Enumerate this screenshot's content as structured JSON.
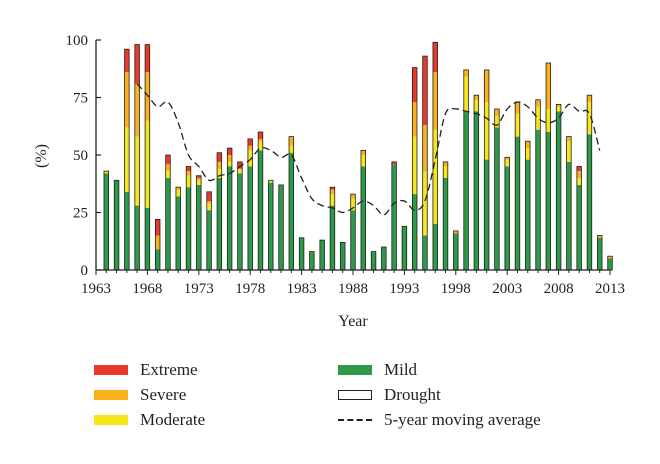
{
  "chart_data": {
    "type": "bar",
    "stacked": true,
    "xlabel": "Year",
    "ylabel": "(%)",
    "ylim": [
      0,
      100
    ],
    "xlim": [
      1963,
      2013
    ],
    "yticks": [
      "0",
      "25",
      "50",
      "75",
      "100"
    ],
    "xticks": [
      "1963",
      "1968",
      "1973",
      "1978",
      "1983",
      "1988",
      "1993",
      "1998",
      "2003",
      "2008",
      "2013"
    ],
    "colors": {
      "Mild": "#2d9a47",
      "Moderate": "#f6e71d",
      "Severe": "#f9b21b",
      "Extreme": "#e8392b",
      "Drought": "#231f20",
      "moving_average": "#231f20"
    },
    "x": [
      1964,
      1965,
      1966,
      1967,
      1968,
      1969,
      1970,
      1971,
      1972,
      1973,
      1974,
      1975,
      1976,
      1977,
      1978,
      1979,
      1980,
      1981,
      1982,
      1983,
      1984,
      1985,
      1986,
      1987,
      1988,
      1989,
      1990,
      1991,
      1992,
      1993,
      1994,
      1995,
      1996,
      1997,
      1998,
      1999,
      2000,
      2001,
      2002,
      2003,
      2004,
      2005,
      2006,
      2007,
      2008,
      2009,
      2010,
      2011,
      2012,
      2013
    ],
    "series": [
      {
        "name": "Mild",
        "values": [
          42,
          39,
          34,
          28,
          27,
          9,
          40,
          32,
          36,
          37,
          26,
          40,
          45,
          42,
          45,
          52,
          38,
          37,
          51,
          14,
          8,
          13,
          28,
          12,
          26,
          45,
          8,
          10,
          46,
          19,
          33,
          15,
          20,
          40,
          16,
          69,
          69,
          48,
          62,
          45,
          58,
          48,
          61,
          60,
          69,
          47,
          37,
          59,
          14,
          5
        ]
      },
      {
        "name": "Moderate",
        "values": [
          1,
          0,
          28,
          30,
          38,
          0,
          3,
          3,
          5,
          2,
          3,
          4,
          2,
          2,
          7,
          4,
          1,
          0,
          3,
          0,
          0,
          0,
          5,
          0,
          5,
          5,
          0,
          0,
          0,
          0,
          25,
          28,
          41,
          5,
          0,
          15,
          5,
          25,
          5,
          3,
          10,
          5,
          10,
          10,
          2,
          9,
          3,
          14,
          0,
          0
        ]
      },
      {
        "name": "Severe",
        "values": [
          0,
          0,
          24,
          23,
          21,
          6,
          3,
          1,
          2,
          1,
          1,
          3,
          3,
          0,
          2,
          1,
          0,
          0,
          4,
          0,
          0,
          0,
          2,
          0,
          2,
          2,
          0,
          0,
          0,
          0,
          15,
          20,
          25,
          2,
          1,
          3,
          2,
          14,
          3,
          1,
          5,
          3,
          3,
          20,
          1,
          2,
          3,
          3,
          1,
          1
        ]
      },
      {
        "name": "Extreme",
        "values": [
          0,
          0,
          10,
          17,
          12,
          7,
          4,
          0,
          2,
          1,
          4,
          4,
          3,
          3,
          3,
          3,
          0,
          0,
          0,
          0,
          0,
          0,
          1,
          0,
          0,
          0,
          0,
          0,
          1,
          0,
          15,
          30,
          13,
          0,
          0,
          0,
          0,
          0,
          0,
          0,
          0,
          0,
          0,
          0,
          0,
          0,
          2,
          0,
          0,
          0
        ]
      }
    ],
    "moving_average": {
      "name": "5-year moving average",
      "x": [
        1967,
        1968,
        1969,
        1970,
        1971,
        1972,
        1973,
        1974,
        1975,
        1976,
        1977,
        1978,
        1979,
        1980,
        1981,
        1982,
        1983,
        1984,
        1985,
        1986,
        1987,
        1988,
        1989,
        1990,
        1991,
        1992,
        1993,
        1994,
        1995,
        1996,
        1997,
        1998,
        1999,
        2000,
        2001,
        2002,
        2003,
        2004,
        2005,
        2006,
        2007,
        2008,
        2009,
        2010,
        2011,
        2012
      ],
      "values": [
        81,
        76,
        71,
        73,
        64,
        50,
        45,
        39,
        41,
        42,
        45,
        48,
        53,
        52,
        49,
        50,
        40,
        31,
        28,
        27,
        25,
        27,
        30,
        28,
        24,
        29,
        30,
        26,
        30,
        48,
        68,
        70,
        69,
        68,
        66,
        63,
        70,
        73,
        71,
        66,
        64,
        66,
        72,
        69,
        68,
        52
      ]
    }
  },
  "legend": {
    "extreme": "Extreme",
    "severe": "Severe",
    "moderate": "Moderate",
    "mild": "Mild",
    "drought": "Drought",
    "moving_average": "5-year moving average"
  }
}
